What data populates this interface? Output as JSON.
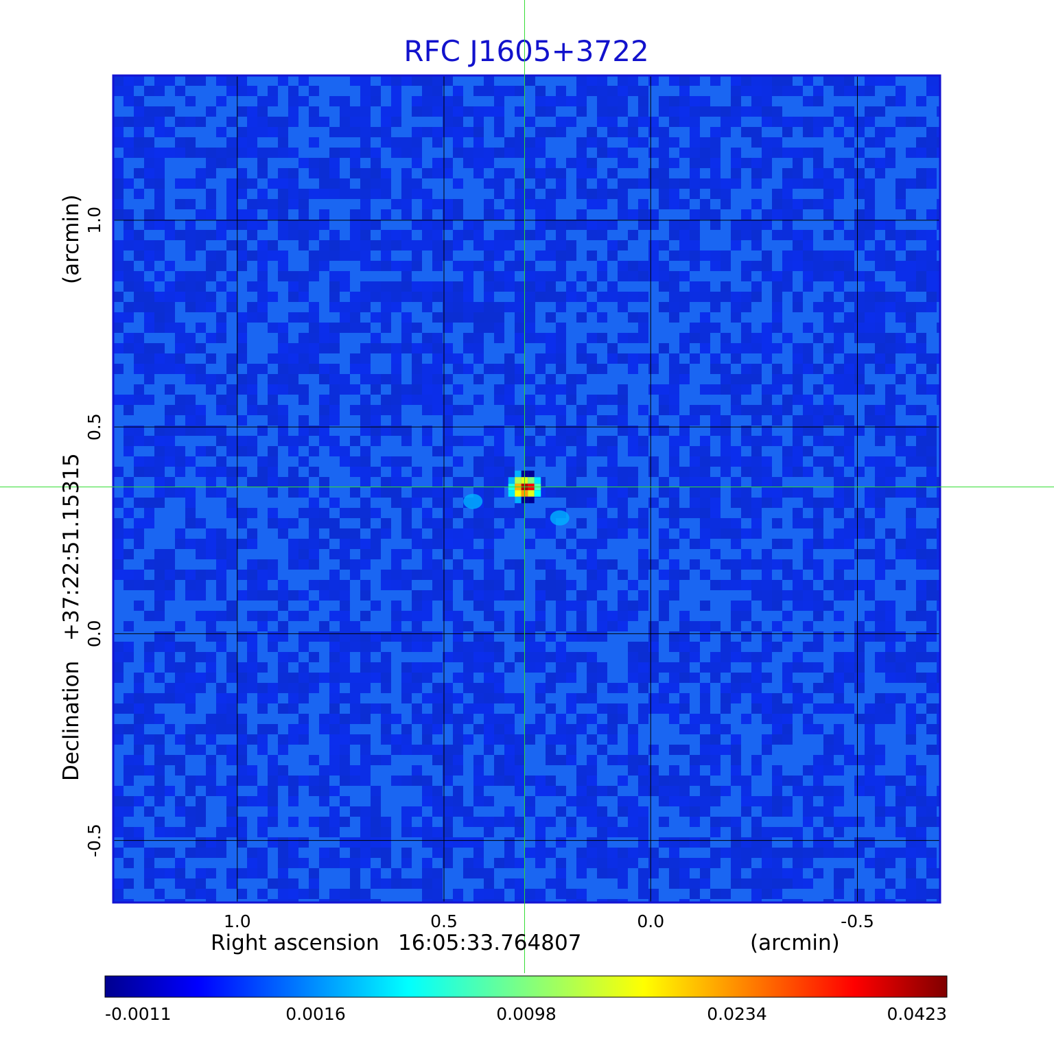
{
  "chart_data": {
    "type": "heatmap",
    "title": "RFC J1605+3722",
    "xlabel": {
      "name": "Right ascension",
      "center": "16:05:33.764807",
      "unit": "(arcmin)"
    },
    "ylabel": {
      "name": "Declination",
      "center": "+37:22:51.15315",
      "unit": "(arcmin)"
    },
    "x_axis": {
      "direction": "decreasing-left-to-right",
      "range": [
        1.3,
        -0.7
      ],
      "ticks": [
        1.0,
        0.5,
        0.0,
        -0.5
      ],
      "tick_labels": [
        "1.0",
        "0.5",
        "0.0",
        "-0.5"
      ]
    },
    "y_axis": {
      "range": [
        -0.65,
        1.35
      ],
      "ticks": [
        -0.5,
        0.0,
        0.5,
        1.0
      ],
      "tick_labels": [
        "-0.5",
        "0.0",
        "0.5",
        "1.0"
      ]
    },
    "grid": true,
    "grid_color": "#000000",
    "crosshair": {
      "x": 0.305,
      "y": 0.355,
      "color": "#33dd33"
    },
    "colormap": "jet",
    "colorbar": {
      "placement": "bottom",
      "tick_labels": [
        "-0.0011",
        "0.0016",
        "0.0098",
        "0.0234",
        "0.0423"
      ]
    },
    "peak": {
      "x": 0.305,
      "y": 0.355,
      "value": 0.0423
    },
    "sidelobes": [
      {
        "x": 0.43,
        "y": 0.32,
        "level": 0.0016
      },
      {
        "x": 0.22,
        "y": 0.28,
        "level": 0.0016
      }
    ],
    "frame_color": "#1414d2"
  }
}
